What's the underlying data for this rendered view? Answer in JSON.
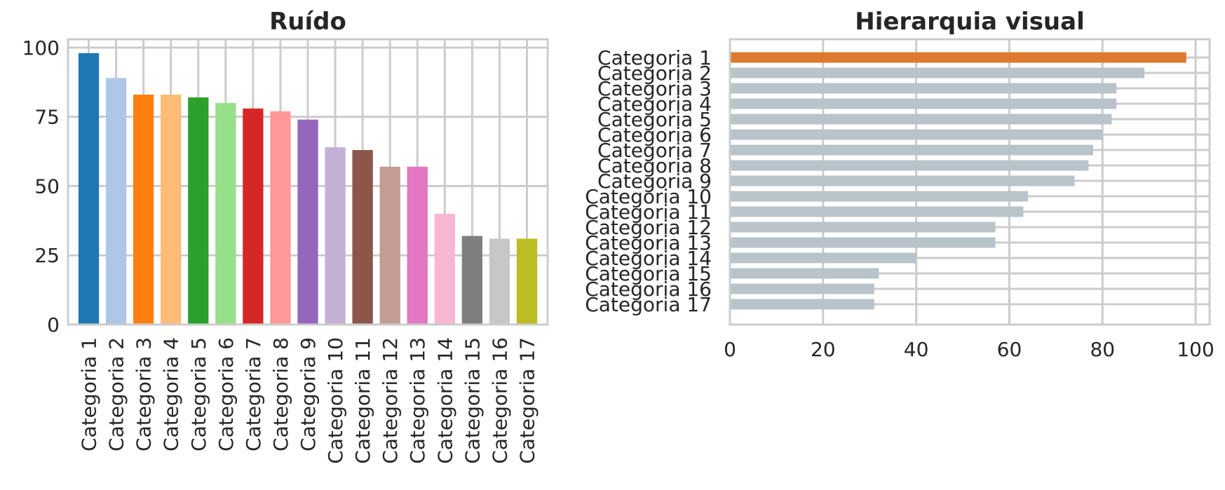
{
  "chart_data": [
    {
      "type": "bar",
      "title": "Ruído",
      "categories": [
        "Categoria 1",
        "Categoria 2",
        "Categoria 3",
        "Categoria 4",
        "Categoria 5",
        "Categoria 6",
        "Categoria 7",
        "Categoria 8",
        "Categoria 9",
        "Categoria 10",
        "Categoria 11",
        "Categoria 12",
        "Categoria 13",
        "Categoria 14",
        "Categoria 15",
        "Categoria 16",
        "Categoria 17"
      ],
      "values": [
        98,
        89,
        83,
        83,
        82,
        80,
        78,
        77,
        74,
        64,
        63,
        57,
        57,
        40,
        32,
        31,
        31
      ],
      "colors": [
        "#1f77b4",
        "#aec7e8",
        "#ff7f0e",
        "#ffbb78",
        "#2ca02c",
        "#98df8a",
        "#d62728",
        "#ff9896",
        "#9467bd",
        "#c5b0d5",
        "#8c564b",
        "#c49c94",
        "#e377c2",
        "#f7b6d2",
        "#7f7f7f",
        "#c7c7c7",
        "#bcbd22"
      ],
      "yticks": [
        0,
        25,
        50,
        75,
        100
      ],
      "ylim": [
        0,
        103
      ],
      "grid": true,
      "xlabel": "",
      "ylabel": ""
    },
    {
      "type": "bar",
      "orientation": "horizontal",
      "title": "Hierarquia visual",
      "categories": [
        "Categoria 1",
        "Categoria 2",
        "Categoria 3",
        "Categoria 4",
        "Categoria 5",
        "Categoria 6",
        "Categoria 7",
        "Categoria 8",
        "Categoria 9",
        "Categoria 10",
        "Categoria 11",
        "Categoria 12",
        "Categoria 13",
        "Categoria 14",
        "Categoria 15",
        "Categoria 16",
        "Categoria 17"
      ],
      "values": [
        98,
        89,
        83,
        83,
        82,
        80,
        78,
        77,
        74,
        64,
        63,
        57,
        57,
        40,
        32,
        31,
        31
      ],
      "highlight_color": "#dd7a2f",
      "base_color": "#b8c4ca",
      "xticks": [
        0,
        20,
        40,
        60,
        80,
        100
      ],
      "xlim": [
        0,
        103
      ],
      "grid": true,
      "xlabel": "",
      "ylabel": ""
    }
  ]
}
